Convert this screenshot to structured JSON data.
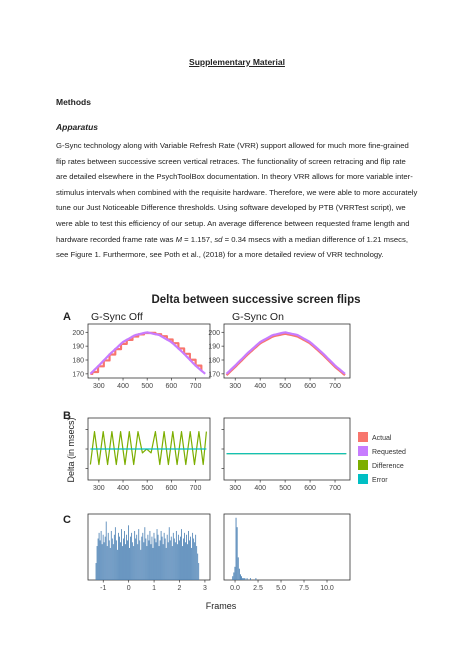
{
  "document": {
    "title": "Supplementary Material",
    "section_heading": "Methods",
    "subsection_heading": "Apparatus",
    "paragraph": [
      {
        "t": "G-Sync technology along with Variable Refresh Rate (VRR) support allowed for much more fine-grained flip rates between successive screen vertical retraces. The functionality of screen retracing and flip rate are detailed elsewhere in the PsychToolBox documentation. In theory VRR allows for more variable inter-stimulus intervals when combined with the requisite hardware. Therefore, we were able to more accurately tune our Just Noticeable Difference thresholds. Using software developed by PTB (VRRTest script), we were able to test this efficiency of our setup. An average difference between requested frame length and hardware recorded frame rate was "
      },
      {
        "t": "M",
        "i": true
      },
      {
        "t": " = 1.157, "
      },
      {
        "t": "sd",
        "i": true
      },
      {
        "t": " = 0.34 msecs with a median difference of 1.21 msecs, see Figure 1. Furthermore, see Poth et al., (2018) for a more detailed review of VRR technology."
      }
    ]
  },
  "figure": {
    "title": "Delta between successive screen flips",
    "panel_labels": [
      "A",
      "B",
      "C"
    ],
    "ylabel": "Delta (in msecs)",
    "xlabel": "Frames",
    "colors": {
      "actual": "#f8766d",
      "requested": "#c77cff",
      "difference": "#7cae00",
      "error": "#00bfc4",
      "hist": "#4a80b4"
    },
    "legend": [
      {
        "label": "Actual",
        "color": "#f8766d"
      },
      {
        "label": "Requested",
        "color": "#c77cff"
      },
      {
        "label": "Difference",
        "color": "#7cae00"
      },
      {
        "label": "Error",
        "color": "#00bfc4"
      }
    ]
  },
  "chart_data": [
    {
      "type": "line",
      "panel": "A-left",
      "title": "G-Sync Off",
      "x_ticks": [
        300,
        400,
        500,
        600,
        700
      ],
      "y_ticks": [
        170,
        180,
        190,
        200
      ],
      "xlim": [
        255,
        760
      ],
      "ylim": [
        167,
        206
      ],
      "series": [
        {
          "name": "Actual",
          "x": [
            265,
            300,
            350,
            400,
            450,
            500,
            550,
            600,
            650,
            700,
            740
          ],
          "y": [
            170,
            176,
            185,
            193,
            198,
            200,
            198,
            193,
            185,
            176,
            170
          ]
        },
        {
          "name": "Requested",
          "x": [
            265,
            300,
            350,
            400,
            450,
            500,
            550,
            600,
            650,
            700,
            740
          ],
          "y": [
            170,
            176,
            185,
            193,
            198,
            200,
            198,
            193,
            185,
            176,
            170
          ]
        }
      ]
    },
    {
      "type": "line",
      "panel": "A-right",
      "title": "G-Sync On",
      "x_ticks": [
        300,
        400,
        500,
        600,
        700
      ],
      "y_ticks": [
        170,
        180,
        190,
        200
      ],
      "xlim": [
        255,
        760
      ],
      "ylim": [
        167,
        206
      ],
      "series": [
        {
          "name": "Actual",
          "x": [
            265,
            300,
            350,
            400,
            450,
            500,
            550,
            600,
            650,
            700,
            740
          ],
          "y": [
            169,
            175,
            184,
            192,
            197,
            199,
            197,
            192,
            184,
            175,
            169
          ]
        },
        {
          "name": "Requested",
          "x": [
            265,
            300,
            350,
            400,
            450,
            500,
            550,
            600,
            650,
            700,
            740
          ],
          "y": [
            170,
            176,
            185,
            193,
            198,
            200,
            198,
            193,
            185,
            176,
            170
          ]
        }
      ]
    },
    {
      "type": "line",
      "panel": "B-left",
      "x_ticks": [
        300,
        400,
        500,
        600,
        700
      ],
      "y_ticks": [
        -5,
        0,
        5
      ],
      "xlim": [
        255,
        760
      ],
      "ylim": [
        -8,
        8
      ],
      "series": [
        {
          "name": "Difference",
          "x": [
            265,
            282,
            300,
            318,
            336,
            354,
            372,
            390,
            408,
            426,
            444,
            462,
            480,
            498,
            516,
            534,
            552,
            570,
            588,
            606,
            624,
            642,
            660,
            678,
            696,
            714,
            732,
            745
          ],
          "y": [
            -4,
            4.5,
            -4,
            4.5,
            -4,
            4.5,
            -4,
            4.5,
            -4,
            4.5,
            -4,
            4.5,
            -1,
            0,
            -1,
            4.5,
            -4,
            4.5,
            -4,
            4.5,
            -4,
            4.5,
            -4,
            4.5,
            -4,
            4.5,
            -4,
            4.5
          ]
        },
        {
          "name": "Error",
          "x": [
            265,
            440,
            500,
            560,
            745
          ],
          "y": [
            0,
            0,
            0,
            0,
            0
          ]
        }
      ]
    },
    {
      "type": "line",
      "panel": "B-right",
      "x_ticks": [
        300,
        400,
        500,
        600,
        700
      ],
      "y_ticks": [
        -5,
        0,
        5
      ],
      "xlim": [
        255,
        760
      ],
      "ylim": [
        -8,
        8
      ],
      "series": [
        {
          "name": "Difference",
          "x": [
            265,
            745
          ],
          "y": [
            -1.2,
            -1.2
          ]
        },
        {
          "name": "Error",
          "x": [
            265,
            745
          ],
          "y": [
            -1.2,
            -1.2
          ]
        }
      ]
    },
    {
      "type": "bar",
      "panel": "C-left",
      "x_ticks": [
        -1,
        0,
        1,
        2,
        3
      ],
      "xlim": [
        -1.6,
        3.2
      ],
      "ylim": [
        0,
        35
      ],
      "y_ticks": [
        0,
        10,
        20,
        30
      ],
      "bin_start": -1.3,
      "bin_width": 0.04,
      "values": [
        9,
        18,
        22,
        25,
        21,
        26,
        19,
        24,
        20,
        23,
        31,
        18,
        25,
        21,
        17,
        26,
        22,
        19,
        24,
        28,
        21,
        16,
        25,
        23,
        20,
        27,
        18,
        22,
        26,
        19,
        24,
        21,
        29,
        17,
        23,
        25,
        20,
        18,
        26,
        22,
        24,
        19,
        27,
        21,
        16,
        23,
        25,
        20,
        28,
        22,
        18,
        24,
        21,
        26,
        19,
        23,
        17,
        25,
        22,
        20,
        27,
        24,
        18,
        21,
        26,
        23,
        19,
        25,
        22,
        17,
        24,
        20,
        28,
        21,
        23,
        18,
        25,
        22,
        20,
        26,
        19,
        24,
        21,
        23,
        27,
        18,
        22,
        25,
        20,
        24,
        19,
        26,
        21,
        23,
        17,
        25,
        22,
        20,
        24,
        18,
        14,
        9
      ]
    },
    {
      "type": "bar",
      "panel": "C-right",
      "x_ticks": [
        0.0,
        2.5,
        5.0,
        7.5,
        10.0
      ],
      "x_tick_labels": [
        "0.0",
        "2.5",
        "5.0",
        "7.5",
        "10.0"
      ],
      "xlim": [
        -1.2,
        12.5
      ],
      "ylim": [
        0,
        35
      ],
      "y_ticks": [
        0,
        10,
        20,
        30
      ],
      "bin_start": -0.3,
      "bin_width": 0.12,
      "values": [
        2,
        4,
        7,
        33,
        28,
        12,
        6,
        3,
        2,
        1,
        1,
        1,
        0,
        1,
        0,
        0,
        1,
        0,
        0,
        0,
        0,
        1
      ]
    }
  ]
}
